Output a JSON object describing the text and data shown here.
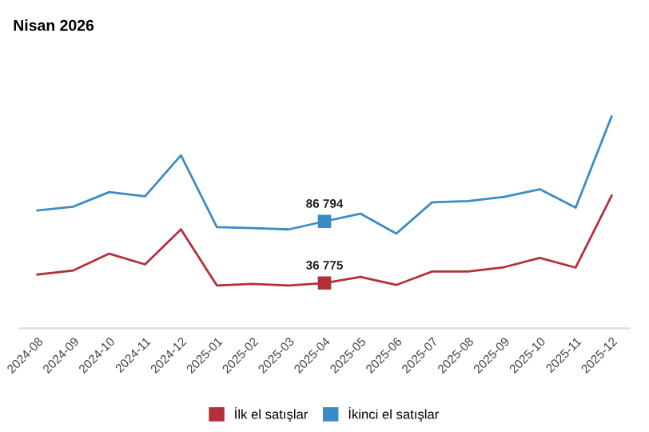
{
  "chart_data": {
    "type": "line",
    "title": "Nisan 2026",
    "categories": [
      "2024-08",
      "2024-09",
      "2024-10",
      "2024-11",
      "2024-12",
      "2025-01",
      "2025-02",
      "2025-03",
      "2025-04",
      "2025-05",
      "2025-06",
      "2025-07",
      "2025-08",
      "2025-09",
      "2025-10",
      "2025-11",
      "2025-12"
    ],
    "series": [
      {
        "name": "İlk el satışlar",
        "color": "#b3303a",
        "values": [
          43700,
          47000,
          60600,
          51900,
          80300,
          34800,
          36100,
          34800,
          36775,
          41700,
          35200,
          46100,
          46100,
          49600,
          57200,
          49300,
          107600
        ],
        "value_labels": [
          null,
          null,
          null,
          null,
          null,
          null,
          null,
          null,
          "36 775",
          null,
          null,
          null,
          null,
          null,
          null,
          null,
          null
        ]
      },
      {
        "name": "İkinci el satışlar",
        "color": "#3a8cc4",
        "values": [
          95700,
          98800,
          110600,
          107200,
          140500,
          82200,
          81300,
          80300,
          86794,
          93100,
          76900,
          102300,
          103300,
          106700,
          112900,
          98000,
          172000
        ],
        "value_labels": [
          null,
          null,
          null,
          null,
          null,
          null,
          null,
          null,
          "86 794",
          null,
          null,
          null,
          null,
          null,
          null,
          null,
          null
        ]
      }
    ],
    "tick_labels": "x",
    "grid": false,
    "legend": "bottom",
    "marker": "none",
    "line_style": "solid"
  }
}
